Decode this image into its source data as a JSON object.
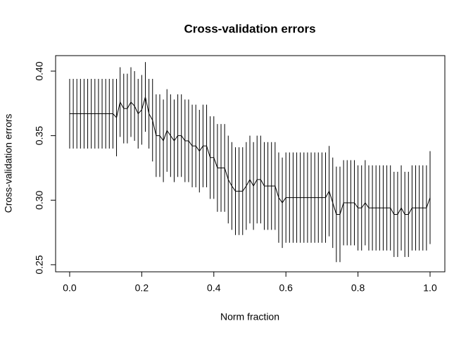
{
  "chart_data": {
    "type": "line",
    "title": "Cross-validation errors",
    "x_label": "Norm fraction",
    "y_label": "Cross-validation errors",
    "x": [
      0,
      0.01,
      0.02,
      0.03,
      0.04,
      0.05,
      0.06,
      0.07,
      0.08,
      0.09,
      0.1,
      0.11,
      0.12,
      0.13,
      0.14,
      0.15,
      0.16,
      0.17,
      0.18,
      0.19,
      0.2,
      0.21,
      0.22,
      0.23,
      0.24,
      0.25,
      0.26,
      0.27,
      0.28,
      0.29,
      0.3,
      0.31,
      0.32,
      0.33,
      0.34,
      0.35,
      0.36,
      0.37,
      0.38,
      0.39,
      0.4,
      0.41,
      0.42,
      0.43,
      0.44,
      0.45,
      0.46,
      0.47,
      0.48,
      0.49,
      0.5,
      0.51,
      0.52,
      0.53,
      0.54,
      0.55,
      0.56,
      0.57,
      0.58,
      0.59,
      0.6,
      0.61,
      0.62,
      0.63,
      0.64,
      0.65,
      0.66,
      0.67,
      0.68,
      0.69,
      0.7,
      0.71,
      0.72,
      0.73,
      0.74,
      0.75,
      0.76,
      0.77,
      0.78,
      0.79,
      0.8,
      0.81,
      0.82,
      0.83,
      0.84,
      0.85,
      0.86,
      0.87,
      0.88,
      0.89,
      0.9,
      0.91,
      0.92,
      0.93,
      0.94,
      0.95,
      0.96,
      0.97,
      0.98,
      0.99,
      1
    ],
    "series": [
      {
        "color": "#000000",
        "values": [
          0.367,
          0.367,
          0.367,
          0.367,
          0.367,
          0.367,
          0.367,
          0.367,
          0.367,
          0.367,
          0.367,
          0.367,
          0.367,
          0.364,
          0.376,
          0.371,
          0.371,
          0.376,
          0.373,
          0.367,
          0.37,
          0.38,
          0.367,
          0.362,
          0.35,
          0.35,
          0.346,
          0.354,
          0.35,
          0.346,
          0.35,
          0.35,
          0.346,
          0.346,
          0.342,
          0.342,
          0.338,
          0.342,
          0.342,
          0.333,
          0.333,
          0.325,
          0.325,
          0.325,
          0.316,
          0.311,
          0.307,
          0.307,
          0.307,
          0.311,
          0.316,
          0.311,
          0.316,
          0.316,
          0.311,
          0.311,
          0.311,
          0.311,
          0.302,
          0.298,
          0.302,
          0.302,
          0.302,
          0.302,
          0.302,
          0.302,
          0.302,
          0.302,
          0.302,
          0.302,
          0.302,
          0.302,
          0.307,
          0.298,
          0.289,
          0.289,
          0.298,
          0.298,
          0.298,
          0.298,
          0.294,
          0.294,
          0.298,
          0.294,
          0.294,
          0.294,
          0.294,
          0.294,
          0.294,
          0.294,
          0.289,
          0.289,
          0.294,
          0.289,
          0.289,
          0.294,
          0.294,
          0.294,
          0.294,
          0.294,
          0.302
        ],
        "errors": [
          0.027,
          0.027,
          0.027,
          0.027,
          0.027,
          0.027,
          0.027,
          0.027,
          0.027,
          0.027,
          0.027,
          0.027,
          0.027,
          0.03,
          0.027,
          0.027,
          0.027,
          0.027,
          0.027,
          0.027,
          0.027,
          0.027,
          0.027,
          0.032,
          0.032,
          0.032,
          0.032,
          0.032,
          0.032,
          0.032,
          0.032,
          0.032,
          0.032,
          0.032,
          0.032,
          0.032,
          0.032,
          0.032,
          0.032,
          0.032,
          0.032,
          0.034,
          0.034,
          0.034,
          0.034,
          0.034,
          0.034,
          0.034,
          0.034,
          0.034,
          0.034,
          0.034,
          0.034,
          0.034,
          0.034,
          0.034,
          0.034,
          0.034,
          0.035,
          0.035,
          0.035,
          0.035,
          0.035,
          0.035,
          0.035,
          0.035,
          0.035,
          0.035,
          0.035,
          0.035,
          0.035,
          0.035,
          0.035,
          0.035,
          0.037,
          0.037,
          0.033,
          0.033,
          0.033,
          0.033,
          0.033,
          0.033,
          0.033,
          0.033,
          0.033,
          0.033,
          0.033,
          0.033,
          0.033,
          0.033,
          0.033,
          0.033,
          0.033,
          0.033,
          0.033,
          0.033,
          0.033,
          0.033,
          0.033,
          0.033,
          0.036
        ]
      }
    ],
    "xlim": [
      -0.039,
      1.041
    ],
    "ylim": [
      0.2445,
      0.412
    ],
    "xticks": [
      {
        "value": 0,
        "label": "0.0"
      },
      0.2,
      0.4,
      0.6,
      0.8,
      {
        "value": 1,
        "label": "1.0"
      }
    ],
    "yticks": [
      0.25,
      {
        "value": 0.3,
        "label": "0.30"
      },
      0.35,
      {
        "value": 0.4,
        "label": "0.40"
      }
    ]
  }
}
